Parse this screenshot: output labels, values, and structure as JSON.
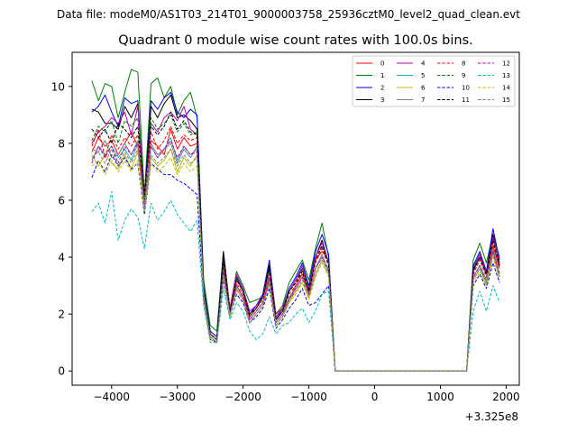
{
  "header": {
    "data_file": "Data file: modeM0/AS1T03_214T01_9000003758_25936cztM0_level2_quad_clean.evt"
  },
  "chart_data": {
    "type": "line",
    "title": "Quadrant 0 module wise count rates with 100.0s bins.",
    "xlabel": "",
    "ylabel": "",
    "xlim": [
      -4600,
      2200
    ],
    "ylim": [
      -0.5,
      11.2
    ],
    "x_offset_label": "+3.325e8",
    "x_ticks": [
      -4000,
      -3000,
      -2000,
      -1000,
      0,
      1000,
      2000
    ],
    "x_tick_labels": [
      "−4000",
      "−3000",
      "−2000",
      "−1000",
      "0",
      "1000",
      "2000"
    ],
    "y_ticks": [
      0,
      2,
      4,
      6,
      8,
      10
    ],
    "y_tick_labels": [
      "0",
      "2",
      "4",
      "6",
      "8",
      "10"
    ],
    "x": [
      -4300,
      -4200,
      -4100,
      -4000,
      -3900,
      -3800,
      -3700,
      -3600,
      -3500,
      -3400,
      -3300,
      -3200,
      -3100,
      -3000,
      -2900,
      -2800,
      -2700,
      -2600,
      -2500,
      -2400,
      -2300,
      -2200,
      -2100,
      -2000,
      -1900,
      -1800,
      -1700,
      -1600,
      -1500,
      -1400,
      -1300,
      -1200,
      -1100,
      -1000,
      -900,
      -800,
      -700,
      -600,
      -500,
      -400,
      -300,
      -200,
      -100,
      0,
      100,
      200,
      300,
      400,
      500,
      600,
      700,
      800,
      900,
      1000,
      1100,
      1200,
      1300,
      1400,
      1500,
      1600,
      1700,
      1800,
      1900
    ],
    "legend_position": "top-right",
    "legend_columns": 4,
    "series": [
      {
        "name": "0",
        "color": "#ff0000",
        "dash": "solid",
        "values": [
          7.7,
          8.2,
          7.9,
          8.1,
          7.6,
          8.0,
          8.4,
          7.9,
          6.4,
          8.1,
          7.9,
          7.6,
          8.5,
          7.8,
          8.2,
          7.9,
          8.0,
          2.8,
          1.4,
          1.2,
          3.6,
          2.2,
          3.0,
          2.6,
          2.0,
          2.3,
          2.6,
          3.3,
          2.0,
          2.2,
          2.5,
          3.0,
          3.4,
          2.8,
          3.9,
          4.2,
          3.9,
          0,
          0,
          0,
          0,
          0,
          0,
          0,
          0,
          0,
          0,
          0,
          0,
          0,
          0,
          0,
          0,
          0,
          0,
          0,
          0,
          0,
          3.5,
          4.0,
          3.4,
          4.4,
          3.6
        ]
      },
      {
        "name": "1",
        "color": "#008000",
        "dash": "solid",
        "values": [
          10.2,
          9.5,
          10.1,
          10.0,
          8.9,
          9.8,
          10.6,
          10.5,
          6.2,
          10.1,
          10.3,
          9.6,
          10.0,
          9.0,
          9.5,
          9.8,
          8.9,
          3.2,
          1.6,
          1.4,
          4.2,
          2.2,
          3.5,
          3.0,
          2.4,
          2.5,
          2.6,
          3.8,
          2.0,
          2.3,
          3.1,
          3.5,
          3.9,
          3.2,
          4.3,
          5.2,
          4.0,
          0,
          0,
          0,
          0,
          0,
          0,
          0,
          0,
          0,
          0,
          0,
          0,
          0,
          0,
          0,
          0,
          0,
          0,
          0,
          0,
          0,
          3.9,
          4.5,
          3.8,
          4.8,
          4.0
        ]
      },
      {
        "name": "2",
        "color": "#0000ff",
        "dash": "solid",
        "values": [
          9.1,
          9.3,
          9.7,
          9.1,
          8.6,
          9.6,
          9.4,
          9.5,
          6.0,
          9.5,
          9.2,
          9.6,
          9.8,
          9.1,
          8.9,
          9.2,
          9.0,
          3.0,
          1.4,
          1.2,
          4.1,
          2.1,
          3.4,
          2.9,
          2.0,
          2.3,
          2.7,
          3.9,
          1.8,
          2.2,
          2.9,
          3.3,
          3.8,
          3.0,
          4.2,
          4.8,
          4.1,
          0,
          0,
          0,
          0,
          0,
          0,
          0,
          0,
          0,
          0,
          0,
          0,
          0,
          0,
          0,
          0,
          0,
          0,
          0,
          0,
          0,
          3.7,
          4.2,
          3.5,
          5.0,
          3.9
        ]
      },
      {
        "name": "3",
        "color": "#000000",
        "dash": "solid",
        "values": [
          9.2,
          9.1,
          8.7,
          8.7,
          8.5,
          9.3,
          8.9,
          9.4,
          5.8,
          9.3,
          8.9,
          9.4,
          9.7,
          8.9,
          9.0,
          8.8,
          8.5,
          2.9,
          1.3,
          1.1,
          4.2,
          2.1,
          3.3,
          2.8,
          1.9,
          2.2,
          2.6,
          3.7,
          1.8,
          2.1,
          2.8,
          3.2,
          3.6,
          2.9,
          4.0,
          4.6,
          3.8,
          0,
          0,
          0,
          0,
          0,
          0,
          0,
          0,
          0,
          0,
          0,
          0,
          0,
          0,
          0,
          0,
          0,
          0,
          0,
          0,
          0,
          3.6,
          4.1,
          3.4,
          4.8,
          3.7
        ]
      },
      {
        "name": "4",
        "color": "#bf00bf",
        "dash": "solid",
        "values": [
          8.0,
          8.4,
          8.6,
          8.9,
          8.7,
          9.1,
          8.3,
          9.3,
          6.1,
          8.7,
          8.4,
          8.9,
          9.1,
          8.8,
          9.3,
          8.5,
          8.3,
          2.8,
          1.3,
          1.1,
          3.9,
          2.2,
          3.4,
          2.9,
          2.1,
          2.3,
          2.6,
          3.6,
          1.9,
          2.2,
          2.8,
          3.2,
          3.7,
          2.9,
          4.0,
          4.5,
          3.8,
          0,
          0,
          0,
          0,
          0,
          0,
          0,
          0,
          0,
          0,
          0,
          0,
          0,
          0,
          0,
          0,
          0,
          0,
          0,
          0,
          0,
          3.5,
          4.1,
          3.4,
          4.7,
          3.8
        ]
      },
      {
        "name": "5",
        "color": "#20b2aa",
        "dash": "solid",
        "values": [
          7.4,
          7.9,
          7.6,
          7.9,
          7.5,
          7.8,
          7.4,
          8.0,
          5.6,
          7.9,
          7.5,
          7.8,
          8.2,
          7.4,
          7.9,
          7.6,
          7.8,
          2.7,
          1.2,
          1.0,
          3.5,
          2.0,
          3.0,
          2.6,
          1.8,
          2.1,
          2.4,
          3.2,
          1.7,
          2.0,
          2.5,
          2.9,
          3.3,
          2.7,
          3.6,
          4.0,
          3.6,
          0,
          0,
          0,
          0,
          0,
          0,
          0,
          0,
          0,
          0,
          0,
          0,
          0,
          0,
          0,
          0,
          0,
          0,
          0,
          0,
          0,
          3.3,
          3.7,
          3.1,
          4.2,
          3.4
        ]
      },
      {
        "name": "6",
        "color": "#bfbf00",
        "dash": "solid",
        "values": [
          7.6,
          7.2,
          7.6,
          7.3,
          7.1,
          7.6,
          7.1,
          7.7,
          5.7,
          7.5,
          7.2,
          7.4,
          7.8,
          7.0,
          7.5,
          7.2,
          7.6,
          2.6,
          1.1,
          1.0,
          3.4,
          2.0,
          2.9,
          2.5,
          1.7,
          2.0,
          2.3,
          3.1,
          1.6,
          1.9,
          2.4,
          2.8,
          3.1,
          2.6,
          3.4,
          3.9,
          3.4,
          0,
          0,
          0,
          0,
          0,
          0,
          0,
          0,
          0,
          0,
          0,
          0,
          0,
          0,
          0,
          0,
          0,
          0,
          0,
          0,
          0,
          3.2,
          3.6,
          3.0,
          4.1,
          3.3
        ]
      },
      {
        "name": "7",
        "color": "#808080",
        "dash": "solid",
        "values": [
          7.8,
          7.7,
          8.1,
          7.5,
          7.6,
          8.0,
          7.6,
          8.1,
          5.9,
          8.0,
          7.6,
          7.8,
          8.0,
          7.3,
          7.8,
          7.5,
          7.9,
          2.7,
          1.2,
          1.0,
          3.6,
          2.0,
          3.0,
          2.6,
          1.8,
          2.1,
          2.4,
          3.3,
          1.7,
          2.0,
          2.6,
          2.9,
          3.3,
          2.7,
          3.6,
          4.1,
          3.5,
          0,
          0,
          0,
          0,
          0,
          0,
          0,
          0,
          0,
          0,
          0,
          0,
          0,
          0,
          0,
          0,
          0,
          0,
          0,
          0,
          0,
          3.3,
          3.7,
          3.2,
          4.3,
          3.4
        ]
      },
      {
        "name": "8",
        "color": "#ff0000",
        "dash": "dashed",
        "values": [
          7.9,
          8.5,
          7.5,
          8.3,
          7.8,
          8.2,
          7.9,
          8.3,
          6.2,
          8.4,
          7.8,
          8.1,
          8.6,
          8.0,
          8.3,
          8.1,
          8.2,
          2.8,
          1.3,
          1.1,
          3.7,
          2.1,
          3.1,
          2.7,
          1.9,
          2.2,
          2.5,
          3.4,
          1.8,
          2.1,
          2.7,
          3.0,
          3.5,
          2.8,
          3.8,
          4.3,
          3.7,
          0,
          0,
          0,
          0,
          0,
          0,
          0,
          0,
          0,
          0,
          0,
          0,
          0,
          0,
          0,
          0,
          0,
          0,
          0,
          0,
          0,
          3.4,
          3.9,
          3.3,
          4.5,
          3.6
        ]
      },
      {
        "name": "9",
        "color": "#008000",
        "dash": "dashed",
        "values": [
          8.1,
          8.6,
          8.4,
          8.8,
          8.0,
          8.8,
          8.6,
          8.9,
          6.0,
          8.9,
          8.5,
          8.7,
          9.0,
          8.4,
          8.7,
          8.3,
          8.4,
          2.9,
          1.3,
          1.1,
          3.8,
          2.1,
          3.2,
          2.8,
          2.0,
          2.2,
          2.6,
          3.5,
          1.8,
          2.1,
          2.8,
          3.1,
          3.6,
          2.9,
          3.9,
          4.4,
          3.8,
          0,
          0,
          0,
          0,
          0,
          0,
          0,
          0,
          0,
          0,
          0,
          0,
          0,
          0,
          0,
          0,
          0,
          0,
          0,
          0,
          0,
          3.5,
          4.0,
          3.4,
          4.6,
          3.7
        ]
      },
      {
        "name": "10",
        "color": "#0000ff",
        "dash": "dashed",
        "values": [
          6.8,
          7.4,
          7.0,
          7.6,
          7.2,
          7.5,
          7.1,
          7.3,
          5.5,
          7.3,
          7.1,
          6.9,
          6.9,
          6.7,
          6.6,
          6.4,
          6.2,
          2.5,
          1.1,
          1.0,
          3.2,
          1.9,
          2.7,
          2.4,
          1.7,
          1.9,
          2.2,
          2.9,
          1.5,
          1.8,
          2.2,
          2.5,
          2.9,
          2.3,
          2.4,
          2.7,
          3.0,
          0,
          0,
          0,
          0,
          0,
          0,
          0,
          0,
          0,
          0,
          0,
          0,
          0,
          0,
          0,
          0,
          0,
          0,
          0,
          0,
          0,
          3.0,
          3.4,
          2.9,
          3.8,
          3.1
        ]
      },
      {
        "name": "11",
        "color": "#000000",
        "dash": "dashed",
        "values": [
          8.5,
          8.2,
          8.5,
          8.0,
          8.7,
          8.5,
          8.2,
          8.6,
          6.2,
          8.6,
          8.3,
          8.6,
          9.1,
          8.5,
          8.8,
          8.4,
          8.3,
          2.8,
          1.3,
          1.1,
          3.9,
          2.1,
          3.2,
          2.8,
          2.0,
          2.2,
          2.6,
          3.6,
          1.8,
          2.1,
          2.8,
          3.1,
          3.5,
          2.8,
          3.9,
          4.4,
          3.7,
          0,
          0,
          0,
          0,
          0,
          0,
          0,
          0,
          0,
          0,
          0,
          0,
          0,
          0,
          0,
          0,
          0,
          0,
          0,
          0,
          0,
          3.5,
          4.0,
          3.4,
          4.6,
          3.7
        ]
      },
      {
        "name": "12",
        "color": "#bf00bf",
        "dash": "dashed",
        "values": [
          7.3,
          7.9,
          7.5,
          7.9,
          7.3,
          7.9,
          7.6,
          8.0,
          5.8,
          7.9,
          7.5,
          7.8,
          8.1,
          7.5,
          7.9,
          7.6,
          7.7,
          2.7,
          1.2,
          1.0,
          3.5,
          2.0,
          3.0,
          2.6,
          1.8,
          2.1,
          2.4,
          3.2,
          1.7,
          2.0,
          2.5,
          2.9,
          3.3,
          2.7,
          3.6,
          4.0,
          3.5,
          0,
          0,
          0,
          0,
          0,
          0,
          0,
          0,
          0,
          0,
          0,
          0,
          0,
          0,
          0,
          0,
          0,
          0,
          0,
          0,
          0,
          3.3,
          3.7,
          3.1,
          4.2,
          3.4
        ]
      },
      {
        "name": "13",
        "color": "#00bfbf",
        "dash": "dashed",
        "values": [
          5.6,
          5.9,
          5.2,
          6.3,
          4.6,
          5.3,
          5.7,
          5.4,
          4.3,
          5.9,
          5.3,
          5.6,
          6.0,
          5.5,
          5.2,
          4.9,
          5.3,
          2.3,
          1.0,
          1.0,
          2.9,
          1.8,
          2.4,
          2.1,
          1.4,
          1.1,
          1.3,
          1.9,
          1.3,
          1.6,
          1.7,
          2.0,
          2.2,
          1.7,
          2.1,
          2.7,
          2.8,
          0,
          0,
          0,
          0,
          0,
          0,
          0,
          0,
          0,
          0,
          0,
          0,
          0,
          0,
          0,
          0,
          0,
          0,
          0,
          0,
          0,
          2.1,
          2.8,
          2.1,
          3.0,
          2.4
        ]
      },
      {
        "name": "14",
        "color": "#bfbf00",
        "dash": "dashed",
        "values": [
          7.2,
          7.4,
          6.9,
          7.4,
          7.0,
          7.4,
          7.0,
          7.4,
          5.6,
          7.3,
          7.0,
          7.2,
          7.5,
          6.9,
          7.3,
          7.0,
          7.2,
          2.6,
          1.1,
          1.0,
          3.3,
          1.9,
          2.8,
          2.5,
          1.7,
          2.0,
          2.3,
          3.0,
          1.6,
          1.9,
          2.4,
          2.7,
          3.1,
          2.5,
          3.3,
          3.8,
          3.3,
          0,
          0,
          0,
          0,
          0,
          0,
          0,
          0,
          0,
          0,
          0,
          0,
          0,
          0,
          0,
          0,
          0,
          0,
          0,
          0,
          0,
          3.1,
          3.5,
          3.0,
          4.0,
          3.2
        ]
      },
      {
        "name": "15",
        "color": "#808080",
        "dash": "dashed",
        "values": [
          7.5,
          7.7,
          7.3,
          7.8,
          7.2,
          7.7,
          7.3,
          7.8,
          5.7,
          7.6,
          7.3,
          7.5,
          7.8,
          7.2,
          7.6,
          7.3,
          7.5,
          2.6,
          1.2,
          1.0,
          3.4,
          2.0,
          2.9,
          2.5,
          1.7,
          2.0,
          2.3,
          3.1,
          1.6,
          1.9,
          2.5,
          2.8,
          3.2,
          2.6,
          3.4,
          3.9,
          3.4,
          0,
          0,
          0,
          0,
          0,
          0,
          0,
          0,
          0,
          0,
          0,
          0,
          0,
          0,
          0,
          0,
          0,
          0,
          0,
          0,
          0,
          3.2,
          3.6,
          3.1,
          4.1,
          3.3
        ]
      }
    ]
  }
}
